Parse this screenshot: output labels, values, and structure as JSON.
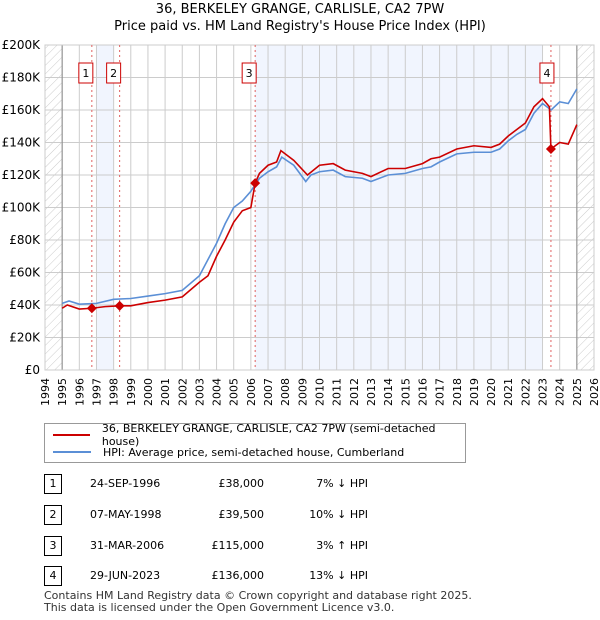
{
  "chart_data": {
    "type": "line",
    "title": "36, BERKELEY GRANGE, CARLISLE, CA2 7PW",
    "subtitle": "Price paid vs. HM Land Registry's House Price Index (HPI)",
    "xlim": [
      1994,
      2026
    ],
    "ylim": [
      0,
      200000
    ],
    "x_ticks": [
      "1994",
      "1995",
      "1996",
      "1997",
      "1998",
      "1999",
      "2000",
      "2001",
      "2002",
      "2003",
      "2004",
      "2005",
      "2006",
      "2007",
      "2008",
      "2009",
      "2010",
      "2011",
      "2012",
      "2013",
      "2014",
      "2015",
      "2016",
      "2017",
      "2018",
      "2019",
      "2020",
      "2021",
      "2022",
      "2023",
      "2024",
      "2025",
      "2026"
    ],
    "y_ticks": [
      "£0",
      "£20K",
      "£40K",
      "£60K",
      "£80K",
      "£100K",
      "£120K",
      "£140K",
      "£160K",
      "£180K",
      "£200K"
    ],
    "series": [
      {
        "name": "36, BERKELEY GRANGE, CARLISLE, CA2 7PW (semi-detached house)",
        "color": "#cc0000",
        "x": [
          1995,
          1995.3,
          1996,
          1996.73,
          1997.5,
          1998.35,
          1999,
          2000,
          2001,
          2002,
          2003,
          2003.5,
          2004,
          2004.5,
          2005,
          2005.5,
          2006,
          2006.25,
          2006.5,
          2007,
          2007.5,
          2007.75,
          2008.5,
          2009.3,
          2010,
          2010.8,
          2011.5,
          2012.5,
          2013,
          2014,
          2015,
          2016,
          2016.5,
          2017,
          2018,
          2019,
          2020,
          2020.5,
          2021,
          2021.5,
          2022,
          2022.5,
          2023,
          2023.4,
          2023.49,
          2024,
          2024.5,
          2025
        ],
        "y": [
          38,
          40,
          37.5,
          38,
          39,
          39.5,
          39.5,
          41.5,
          43,
          45,
          54,
          58,
          70,
          80,
          91,
          98,
          100,
          115,
          121,
          126,
          128,
          135,
          129,
          120,
          126,
          127,
          123,
          121,
          119,
          124,
          124,
          127,
          130,
          131,
          136,
          138,
          137,
          139,
          144,
          148,
          152,
          162,
          167,
          162,
          136,
          140,
          139,
          151
        ]
      },
      {
        "name": "HPI: Average price, semi-detached house, Cumberland",
        "color": "#5b8fd6",
        "x": [
          1995,
          1995.4,
          1996,
          1997,
          1998,
          1999,
          2000,
          2001,
          2002,
          2003,
          2004,
          2004.5,
          2005,
          2005.5,
          2006,
          2006.5,
          2007,
          2007.5,
          2007.8,
          2008.5,
          2009.2,
          2009.5,
          2010,
          2010.8,
          2011.5,
          2012.5,
          2013,
          2014,
          2015,
          2016,
          2016.5,
          2017,
          2018,
          2019,
          2020,
          2020.5,
          2021,
          2021.5,
          2022,
          2022.5,
          2023,
          2023.5,
          2024,
          2024.5,
          2025
        ],
        "y": [
          41,
          42.5,
          40.5,
          41,
          43.5,
          44,
          45.5,
          47,
          49,
          58,
          78,
          90,
          100,
          104,
          110,
          118,
          122,
          125,
          131,
          126,
          116,
          120,
          122,
          123,
          119,
          118,
          116,
          120,
          121,
          124,
          125,
          128,
          133,
          134,
          134,
          136,
          141,
          145,
          148,
          158,
          164,
          160,
          165,
          164,
          173
        ]
      }
    ],
    "transactions": [
      {
        "id": "1",
        "x": 1996.73,
        "price": 38000,
        "date": "24-SEP-1996",
        "price_label": "£38,000",
        "hpi": "7% ↓ HPI"
      },
      {
        "id": "2",
        "x": 1998.35,
        "price": 39500,
        "date": "07-MAY-1998",
        "price_label": "£39,500",
        "hpi": "10% ↓ HPI"
      },
      {
        "id": "3",
        "x": 2006.25,
        "price": 115000,
        "date": "31-MAR-2006",
        "price_label": "£115,000",
        "hpi": "3% ↑ HPI"
      },
      {
        "id": "4",
        "x": 2023.49,
        "price": 136000,
        "date": "29-JUN-2023",
        "price_label": "£136,000",
        "hpi": "13% ↓ HPI"
      }
    ]
  },
  "footer": [
    "Contains HM Land Registry data © Crown copyright and database right 2025.",
    "This data is licensed under the Open Government Licence v3.0."
  ]
}
